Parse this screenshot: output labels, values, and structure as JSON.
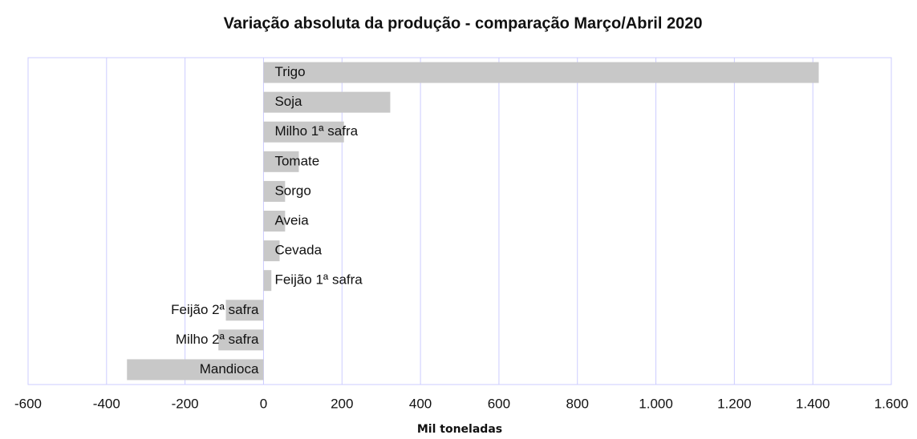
{
  "chart_data": {
    "type": "hbar",
    "title": "Variação absoluta da produção - comparação Março/Abril 2020",
    "x_label": "Mil toneladas",
    "categories": [
      "Trigo",
      "Soja",
      "Milho 1ª safra",
      "Tomate",
      "Sorgo",
      "Aveia",
      "Cevada",
      "Feijão 1ª safra",
      "Feijão 2ª safra",
      "Milho 2ª safra",
      "Mandioca"
    ],
    "values": [
      1415,
      323,
      205,
      90,
      55,
      55,
      41,
      20,
      -96,
      -115,
      -348
    ],
    "color": "#c8c8c8",
    "xlim": [
      -600,
      1600
    ],
    "xticks": [
      -600,
      -400,
      -200,
      0,
      200,
      400,
      600,
      800,
      {
        "value": 1000,
        "label": "1.000"
      },
      {
        "value": 1200,
        "label": "1.200"
      },
      {
        "value": 1400,
        "label": "1.400"
      },
      {
        "value": 1600,
        "label": "1.600"
      }
    ],
    "grid": true
  }
}
